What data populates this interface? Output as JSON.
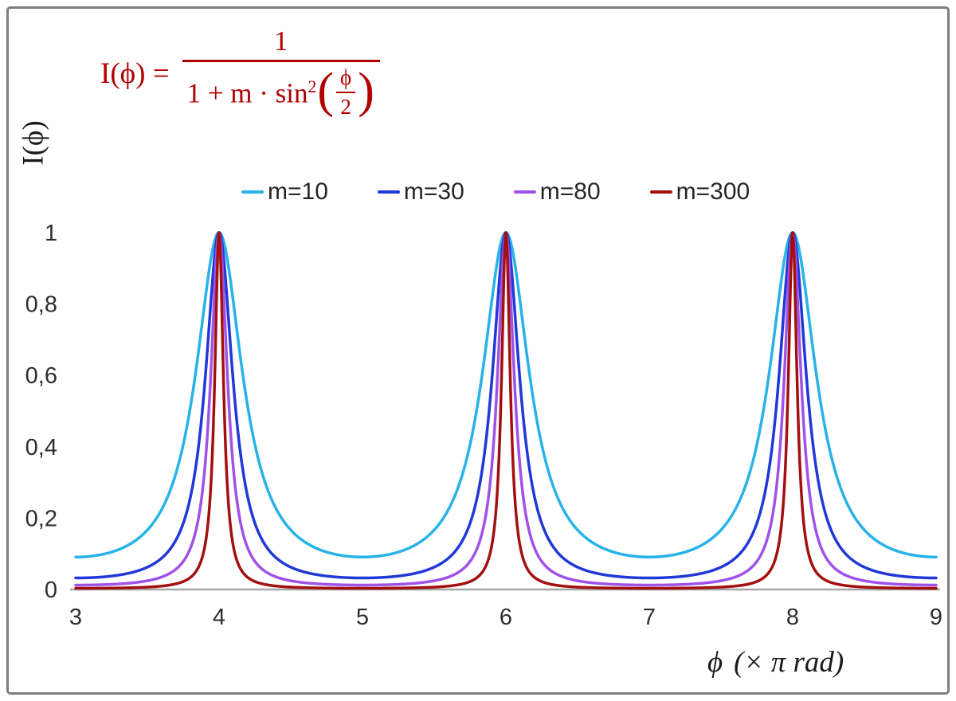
{
  "y_axis_title": "I(ϕ)",
  "x_axis_title": {
    "symbol": "ϕ",
    "units": "(× π rad)"
  },
  "formula": {
    "lhs": "I(ϕ) =",
    "numerator": "1",
    "den_text": "1 + m · sin",
    "den_exp": "2",
    "paren_open": "(",
    "paren_close": ")",
    "inner_num": "ϕ",
    "inner_den": "2",
    "color": "#b00000"
  },
  "chart_data": {
    "type": "line",
    "title": "",
    "formula_text": "I(ϕ) = 1 / (1 + m·sin²(ϕ/2))",
    "function": "I(x) = 1 / (1 + m * sin(pi*x/2)^2), x expressed in units of π rad",
    "xlabel": "ϕ (× π rad)",
    "ylabel": "I(ϕ)",
    "x_range": [
      3,
      9
    ],
    "y_range": [
      0,
      1
    ],
    "grid": false,
    "legend_position": "top-center",
    "axis_color": "#a6a6a6",
    "tick_color": "#2e2e2e",
    "sample_step": 0.0025,
    "x_ticks": [
      {
        "value": 3,
        "label": "3"
      },
      {
        "value": 4,
        "label": "4"
      },
      {
        "value": 5,
        "label": "5"
      },
      {
        "value": 6,
        "label": "6"
      },
      {
        "value": 7,
        "label": "7"
      },
      {
        "value": 8,
        "label": "8"
      },
      {
        "value": 9,
        "label": "9"
      }
    ],
    "y_ticks": [
      {
        "value": 0,
        "label": "0"
      },
      {
        "value": 0.2,
        "label": "0,2"
      },
      {
        "value": 0.4,
        "label": "0,4"
      },
      {
        "value": 0.6,
        "label": "0,6"
      },
      {
        "value": 0.8,
        "label": "0,8"
      },
      {
        "value": 1,
        "label": "1"
      }
    ],
    "series": [
      {
        "name": "m=10",
        "m": 10,
        "color": "#27b3e8",
        "peaks_x": [
          4,
          6,
          8
        ],
        "peak_value": 1,
        "min_value": 0.0909
      },
      {
        "name": "m=30",
        "m": 30,
        "color": "#2138d8",
        "peaks_x": [
          4,
          6,
          8
        ],
        "peak_value": 1,
        "min_value": 0.0323
      },
      {
        "name": "m=80",
        "m": 80,
        "color": "#a052e8",
        "peaks_x": [
          4,
          6,
          8
        ],
        "peak_value": 1,
        "min_value": 0.0123
      },
      {
        "name": "m=300",
        "m": 300,
        "color": "#a21010",
        "peaks_x": [
          4,
          6,
          8
        ],
        "peak_value": 1,
        "min_value": 0.0033
      }
    ]
  }
}
